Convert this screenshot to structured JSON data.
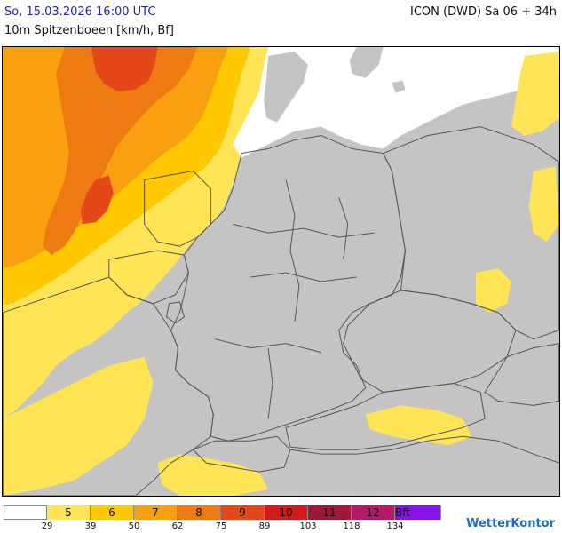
{
  "header": {
    "valid_time": "So, 15.03.2026 16:00 UTC",
    "model_run": "ICON (DWD) Sa 06 + 34h",
    "parameter": "10m Spitzenboeen [km/h, Bf]"
  },
  "legend": {
    "classes": [
      {
        "bf": "",
        "color": "#ffffff"
      },
      {
        "bf": "5",
        "color": "#ffe555"
      },
      {
        "bf": "6",
        "color": "#ffc800"
      },
      {
        "bf": "7",
        "color": "#f8a010"
      },
      {
        "bf": "8",
        "color": "#ee7a12"
      },
      {
        "bf": "9",
        "color": "#e44818"
      },
      {
        "bf": "10",
        "color": "#d41a1a"
      },
      {
        "bf": "11",
        "color": "#a01838"
      },
      {
        "bf": "12",
        "color": "#b81868"
      },
      {
        "bf": "Bft",
        "color": "#8a10ee"
      }
    ],
    "ticks": [
      "29",
      "39",
      "50",
      "62",
      "75",
      "89",
      "103",
      "118",
      "134"
    ]
  },
  "map": {
    "land_color": "#c4c4c4",
    "border_color": "#555555"
  },
  "brand": "WetterKontor"
}
